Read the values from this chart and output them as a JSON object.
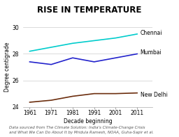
{
  "title": "RISE IN TEMPERATURE",
  "xlabel": "Decade beginning",
  "ylabel": "Degree centigrade",
  "footnote": "Data sourced from The Climate Solution: India's Climate-Change Crisis\nand What We Can Do About It by Mridula Ramesh, NOAA, Guha-Sapir et al.",
  "x": [
    1961,
    1971,
    1981,
    1991,
    2001,
    2011
  ],
  "chennai": [
    28.2,
    28.5,
    28.8,
    29.0,
    29.2,
    29.5
  ],
  "mumbai": [
    27.4,
    27.2,
    27.7,
    27.4,
    27.7,
    28.0
  ],
  "new_delhi": [
    24.35,
    24.5,
    24.8,
    25.0,
    25.0,
    25.05
  ],
  "chennai_color": "#00CCCC",
  "mumbai_color": "#2222CC",
  "new_delhi_color": "#6B2D0D",
  "ylim": [
    24,
    30
  ],
  "yticks": [
    24,
    26,
    28,
    30
  ],
  "bg_color": "#FFFFFF",
  "title_fontsize": 8.5,
  "label_fontsize": 5.5,
  "tick_fontsize": 5.5,
  "footnote_fontsize": 4.0,
  "line_label_fontsize": 5.5
}
